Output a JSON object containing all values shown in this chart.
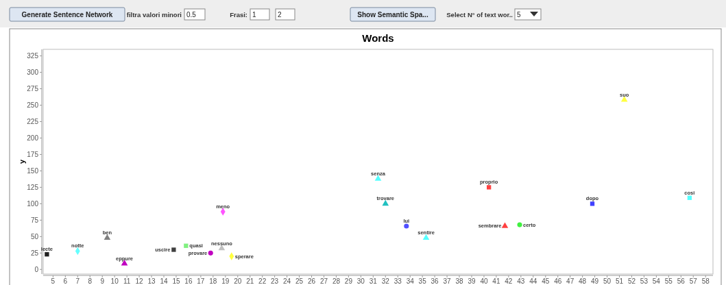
{
  "chart_data": {
    "type": "scatter",
    "title": "Words",
    "ylabel": "y",
    "annotations": [
      "Generate Sentence Network",
      "filtra valori minori",
      "0.5",
      "Frasi:",
      "1",
      "2",
      "Show Semantic Spa...",
      "Select N° of text wor..",
      "5"
    ],
    "xlim": [
      4.2,
      58.6
    ],
    "ylim": [
      -7,
      335
    ],
    "xticks": [
      5,
      6,
      7,
      8,
      9,
      10,
      11,
      12,
      13,
      14,
      15,
      16,
      17,
      18,
      19,
      20,
      21,
      22,
      23,
      24,
      25,
      26,
      27,
      28,
      29,
      30,
      31,
      32,
      33,
      34,
      35,
      36,
      37,
      38,
      39,
      40,
      41,
      42,
      43,
      44,
      45,
      46,
      47,
      48,
      49,
      50,
      51,
      52,
      53,
      54,
      55,
      56,
      57,
      58
    ],
    "yticks": [
      0,
      25,
      50,
      75,
      100,
      125,
      150,
      175,
      200,
      225,
      250,
      275,
      300,
      325
    ],
    "grid": false,
    "legend": false,
    "series": [
      {
        "name": "lecte",
        "color": "#202020",
        "marker": "square",
        "x": [
          4.5
        ],
        "values": [
          23
        ]
      },
      {
        "name": "notte",
        "color": "#66ffff",
        "marker": "diamond",
        "x": [
          7.0
        ],
        "values": [
          28
        ]
      },
      {
        "name": "ben",
        "color": "#808080",
        "marker": "triangle",
        "x": [
          9.4
        ],
        "values": [
          48
        ]
      },
      {
        "name": "eppure",
        "color": "#c000c0",
        "marker": "triangle",
        "x": [
          10.8
        ],
        "values": [
          9
        ]
      },
      {
        "name": "uscire",
        "color": "#404040",
        "marker": "square",
        "x": [
          14.8
        ],
        "values": [
          30
        ]
      },
      {
        "name": "quasi",
        "color": "#80f080",
        "marker": "square",
        "x": [
          15.8
        ],
        "values": [
          36
        ]
      },
      {
        "name": "provare",
        "color": "#c000c0",
        "marker": "circle",
        "x": [
          17.8
        ],
        "values": [
          25
        ]
      },
      {
        "name": "nessuno",
        "color": "#c0c0c0",
        "marker": "triangle",
        "x": [
          18.7
        ],
        "values": [
          32
        ]
      },
      {
        "name": "meno",
        "color": "#ff55ff",
        "marker": "diamond",
        "x": [
          18.8
        ],
        "values": [
          88
        ]
      },
      {
        "name": "sperare",
        "color": "#ffff40",
        "marker": "diamond",
        "x": [
          19.5
        ],
        "values": [
          20
        ]
      },
      {
        "name": "senza",
        "color": "#55ffff",
        "marker": "triangle",
        "x": [
          31.4
        ],
        "values": [
          138
        ]
      },
      {
        "name": "trovare",
        "color": "#20c0c0",
        "marker": "triangle",
        "x": [
          32.0
        ],
        "values": [
          100
        ]
      },
      {
        "name": "lui",
        "color": "#5050ff",
        "marker": "circle",
        "x": [
          33.7
        ],
        "values": [
          66
        ]
      },
      {
        "name": "sentire",
        "color": "#55ffff",
        "marker": "triangle",
        "x": [
          35.3
        ],
        "values": [
          48
        ]
      },
      {
        "name": "proprio",
        "color": "#ff4040",
        "marker": "square",
        "x": [
          40.4
        ],
        "values": [
          125
        ]
      },
      {
        "name": "sembrare",
        "color": "#ff4040",
        "marker": "triangle",
        "x": [
          41.7
        ],
        "values": [
          66
        ]
      },
      {
        "name": "certo",
        "color": "#40f040",
        "marker": "circle",
        "x": [
          42.9
        ],
        "values": [
          68
        ]
      },
      {
        "name": "dopo",
        "color": "#4040ff",
        "marker": "square",
        "x": [
          48.8
        ],
        "values": [
          100
        ]
      },
      {
        "name": "suo",
        "color": "#ffff40",
        "marker": "triangle",
        "x": [
          51.4
        ],
        "values": [
          258
        ]
      },
      {
        "name": "cosi",
        "color": "#55ffff",
        "marker": "square",
        "x": [
          56.7
        ],
        "values": [
          109
        ]
      }
    ]
  }
}
